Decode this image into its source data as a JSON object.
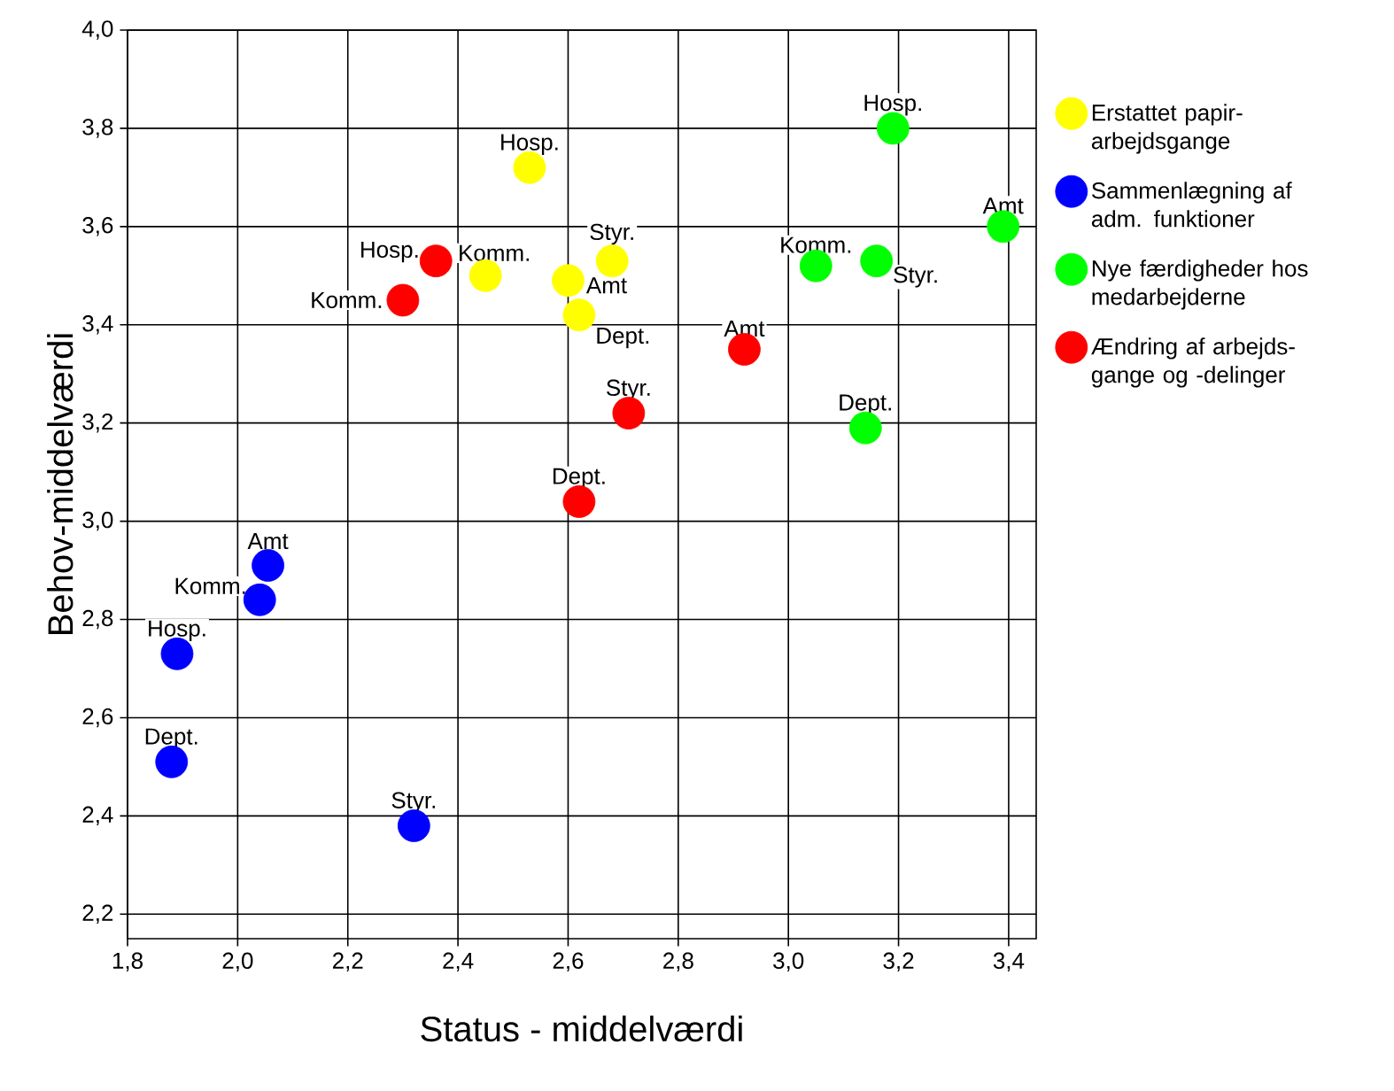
{
  "chart_data": {
    "type": "scatter",
    "xlabel": "Status - middelværdi",
    "ylabel": "Behov-middelværdi",
    "xlim": [
      1.8,
      3.45
    ],
    "ylim": [
      2.15,
      4.0
    ],
    "xticks": [
      {
        "value": 1.8,
        "label": "1,8"
      },
      {
        "value": 2.0,
        "label": "2,0"
      },
      {
        "value": 2.2,
        "label": "2,2"
      },
      {
        "value": 2.4,
        "label": "2,4"
      },
      {
        "value": 2.6,
        "label": "2,6"
      },
      {
        "value": 2.8,
        "label": "2,8"
      },
      {
        "value": 3.0,
        "label": "3,0"
      },
      {
        "value": 3.2,
        "label": "3,2"
      },
      {
        "value": 3.4,
        "label": "3,4"
      }
    ],
    "yticks": [
      {
        "value": 2.2,
        "label": "2,2"
      },
      {
        "value": 2.4,
        "label": "2,4"
      },
      {
        "value": 2.6,
        "label": "2,6"
      },
      {
        "value": 2.8,
        "label": "2,8"
      },
      {
        "value": 3.0,
        "label": "3,0"
      },
      {
        "value": 3.2,
        "label": "3,2"
      },
      {
        "value": 3.4,
        "label": "3,4"
      },
      {
        "value": 3.6,
        "label": "3,6"
      },
      {
        "value": 3.8,
        "label": "3,8"
      },
      {
        "value": 4.0,
        "label": "4,0"
      }
    ],
    "grid": true,
    "legend": "right",
    "marker": "circle",
    "series": [
      {
        "name": "Erstattet papir-arbejdsgange",
        "color": "#ffff00",
        "x": [
          2.53,
          2.45,
          2.68,
          2.6,
          2.62
        ],
        "values": [
          3.72,
          3.5,
          3.53,
          3.49,
          3.42
        ]
      },
      {
        "name": "Sammenlægning af adm. funktioner",
        "color": "#0000ff",
        "x": [
          2.055,
          2.04,
          1.89,
          1.88,
          2.32
        ],
        "values": [
          2.91,
          2.84,
          2.73,
          2.51,
          2.38
        ]
      },
      {
        "name": "Nye færdigheder hos medarbejderne",
        "color": "#00ff00",
        "x": [
          3.19,
          3.39,
          3.05,
          3.16,
          3.14
        ],
        "values": [
          3.8,
          3.6,
          3.52,
          3.53,
          3.19
        ]
      },
      {
        "name": "Ændring af arbejds-gange og -delinger",
        "color": "#ff0000",
        "x": [
          2.36,
          2.3,
          2.92,
          2.71,
          2.62
        ],
        "values": [
          3.53,
          3.45,
          3.35,
          3.22,
          3.04
        ]
      }
    ],
    "annotations": [
      {
        "text": "Hosp.",
        "x": 2.53,
        "y": 3.72
      },
      {
        "text": "Komm.",
        "x": 2.45,
        "y": 3.5
      },
      {
        "text": "Styr.",
        "x": 2.68,
        "y": 3.53
      },
      {
        "text": "Amt",
        "x": 2.6,
        "y": 3.49
      },
      {
        "text": "Dept.",
        "x": 2.62,
        "y": 3.42
      },
      {
        "text": "Amt",
        "x": 2.055,
        "y": 2.91
      },
      {
        "text": "Komm.",
        "x": 2.04,
        "y": 2.84
      },
      {
        "text": "Hosp.",
        "x": 1.89,
        "y": 2.73
      },
      {
        "text": "Dept.",
        "x": 1.88,
        "y": 2.51
      },
      {
        "text": "Styr.",
        "x": 2.32,
        "y": 2.38
      },
      {
        "text": "Hosp.",
        "x": 3.19,
        "y": 3.8
      },
      {
        "text": "Amt",
        "x": 3.39,
        "y": 3.6
      },
      {
        "text": "Komm.",
        "x": 3.05,
        "y": 3.52
      },
      {
        "text": "Styr.",
        "x": 3.16,
        "y": 3.53
      },
      {
        "text": "Dept.",
        "x": 3.14,
        "y": 3.19
      },
      {
        "text": "Hosp.",
        "x": 2.36,
        "y": 3.53
      },
      {
        "text": "Komm.",
        "x": 2.3,
        "y": 3.45
      },
      {
        "text": "Amt",
        "x": 2.92,
        "y": 3.35
      },
      {
        "text": "Styr.",
        "x": 2.71,
        "y": 3.22
      },
      {
        "text": "Dept.",
        "x": 2.62,
        "y": 3.04
      }
    ]
  }
}
